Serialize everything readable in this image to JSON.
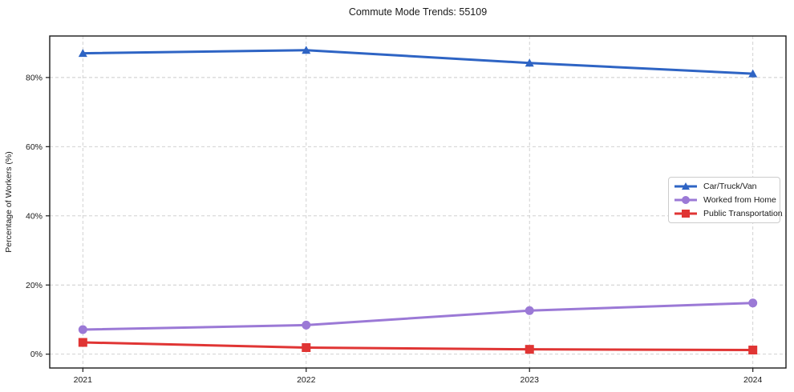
{
  "title": "Commute Mode Trends: 55109",
  "chart_data": {
    "type": "line",
    "title": "Commute Mode Trends: 55109",
    "xlabel": "",
    "ylabel": "Percentage of Workers (%)",
    "x": [
      2021,
      2022,
      2023,
      2024
    ],
    "x_tick_labels": [
      "2021",
      "2022",
      "2023",
      "2024"
    ],
    "y_ticks": [
      0,
      20,
      40,
      60,
      80
    ],
    "y_tick_labels": [
      "0%",
      "20%",
      "40%",
      "60%",
      "80%"
    ],
    "ylim": [
      -4,
      92
    ],
    "grid": true,
    "grid_style": "dashed",
    "legend_position": "center-right",
    "series": [
      {
        "name": "Car/Truck/Van",
        "marker": "triangle",
        "color": "#2e64c4",
        "values": [
          87.0,
          87.9,
          84.2,
          81.1
        ]
      },
      {
        "name": "Worked from Home",
        "marker": "circle",
        "color": "#9b79d6",
        "values": [
          7.1,
          8.4,
          12.6,
          14.8
        ]
      },
      {
        "name": "Public Transportation",
        "marker": "square",
        "color": "#e03534",
        "values": [
          3.4,
          1.9,
          1.4,
          1.2
        ]
      }
    ]
  },
  "colors": {
    "background": "#ffffff",
    "grid": "#cbcbcb",
    "axis": "#1a1a1a",
    "text": "#1a1a1a",
    "legend_border": "#cccccc"
  }
}
